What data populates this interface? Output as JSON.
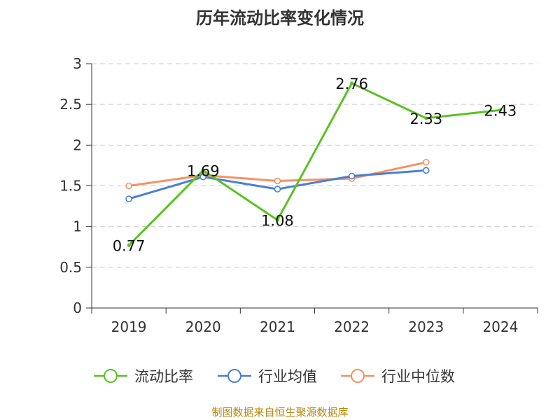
{
  "colors": {
    "current_ratio": "#5bc222",
    "industry_mean": "#4a7fd6",
    "industry_median": "#f49263",
    "grid": "#cccccc",
    "axis": "#333333",
    "source": "#b8860b"
  },
  "chart_data": {
    "type": "line",
    "title": "历年流动比率变化情况",
    "categories": [
      "2019",
      "2020",
      "2021",
      "2022",
      "2023",
      "2024"
    ],
    "series": [
      {
        "name": "流动比率",
        "values": [
          0.77,
          1.69,
          1.08,
          2.76,
          2.33,
          2.43
        ],
        "data_labels": [
          "0.77",
          "1.69",
          "1.08",
          "2.76",
          "2.33",
          "2.43"
        ],
        "markers": false
      },
      {
        "name": "行业均值",
        "values": [
          1.34,
          1.61,
          1.46,
          1.62,
          1.69,
          null
        ],
        "markers": true
      },
      {
        "name": "行业中位数",
        "values": [
          1.5,
          1.63,
          1.56,
          1.59,
          1.79,
          null
        ],
        "markers": true
      }
    ],
    "ylim": [
      0,
      3
    ],
    "yticks": [
      "0",
      "0.5",
      "1",
      "1.5",
      "2",
      "2.5",
      "3"
    ],
    "grid": true,
    "legend_position": "bottom"
  },
  "source": "制图数据来自恒生聚源数据库"
}
